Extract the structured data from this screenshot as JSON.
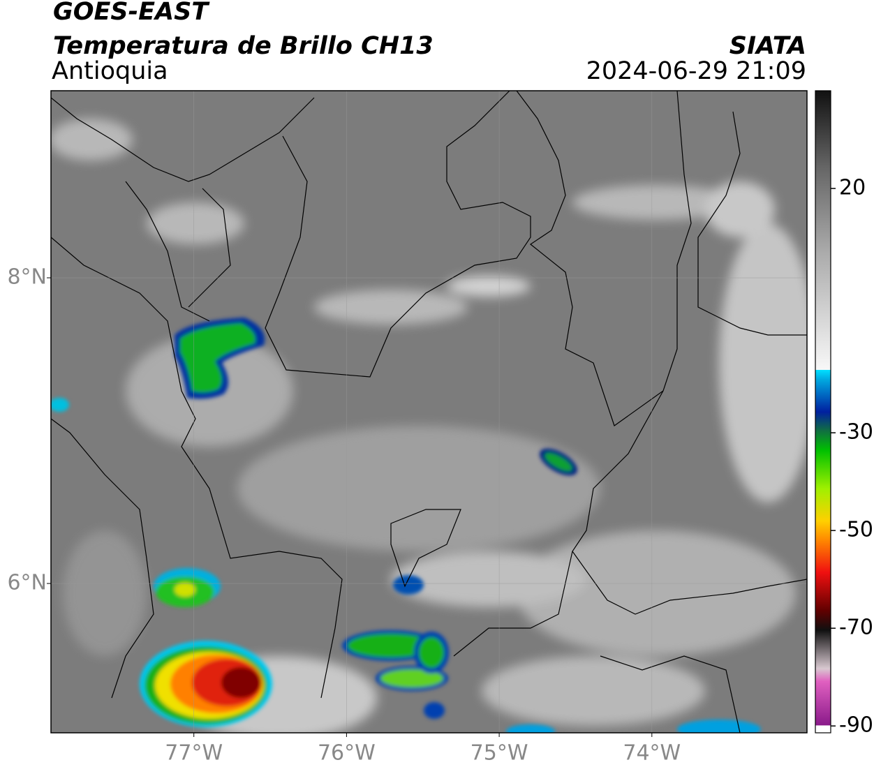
{
  "header": {
    "title": "GOES-EAST",
    "subtitle": "Temperatura de Brillo CH13",
    "region": "Antioquia",
    "source": "SIATA",
    "datetime": "2024-06-29 21:09"
  },
  "map": {
    "xlim": [
      -77.936,
      -72.984
    ],
    "ylim": [
      5.023,
      9.224
    ],
    "xticks": [
      {
        "value": -77,
        "label": "77°W"
      },
      {
        "value": -76,
        "label": "76°W"
      },
      {
        "value": -75,
        "label": "75°W"
      },
      {
        "value": -74,
        "label": "74°W"
      }
    ],
    "yticks": [
      {
        "value": 8,
        "label": "8°N"
      },
      {
        "value": 6,
        "label": "6°N"
      }
    ],
    "grid": true
  },
  "colorbar": {
    "lim": [
      -91.4,
      40
    ],
    "ticks": [
      20,
      -30,
      -50,
      -70,
      -90
    ]
  }
}
